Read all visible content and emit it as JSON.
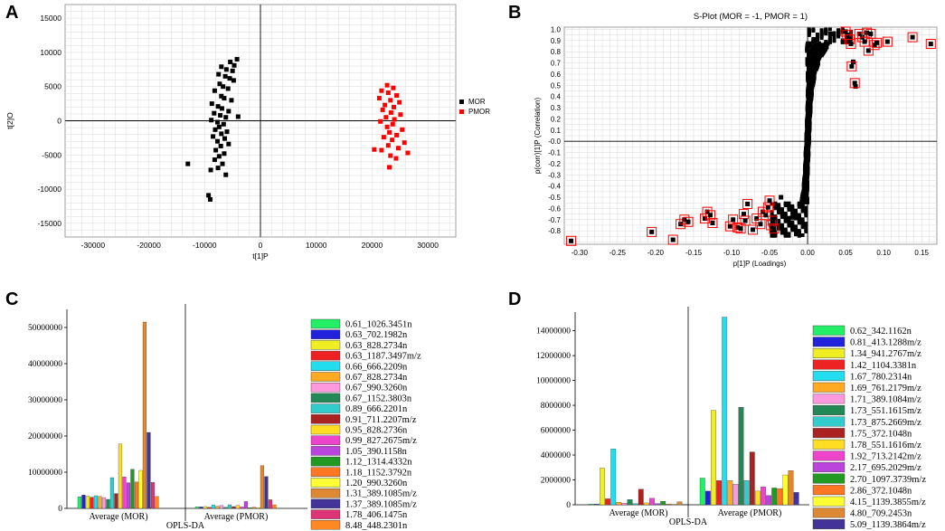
{
  "panels": {
    "a": {
      "letter": "A"
    },
    "b": {
      "letter": "B"
    },
    "c": {
      "letter": "C"
    },
    "d": {
      "letter": "D"
    }
  },
  "colors": {
    "mor": "#000000",
    "pmor": "#ff0000",
    "grid": "#d9d9d9",
    "frame": "#555555"
  },
  "chart_data": [
    {
      "id": "A",
      "type": "scatter",
      "title": "",
      "xlabel": "t[1]P",
      "ylabel": "t[2]O",
      "xlim": [
        -35000,
        35000
      ],
      "ylim": [
        -17000,
        17000
      ],
      "xticks": [
        -30000,
        -20000,
        -10000,
        0,
        10000,
        20000,
        30000
      ],
      "yticks": [
        -15000,
        -10000,
        -5000,
        0,
        5000,
        10000,
        15000
      ],
      "legend_position": "right",
      "series": [
        {
          "name": "MOR",
          "color": "#000000",
          "points": [
            [
              -4200,
              9000
            ],
            [
              -5400,
              8600
            ],
            [
              -4700,
              8100
            ],
            [
              -7000,
              7900
            ],
            [
              -6100,
              7500
            ],
            [
              -5000,
              7300
            ],
            [
              -7500,
              6800
            ],
            [
              -6300,
              6500
            ],
            [
              -5500,
              6200
            ],
            [
              -4800,
              5900
            ],
            [
              -7300,
              5400
            ],
            [
              -6700,
              5000
            ],
            [
              -5800,
              4700
            ],
            [
              -8200,
              4400
            ],
            [
              -7000,
              3600
            ],
            [
              -6500,
              3300
            ],
            [
              -5200,
              3000
            ],
            [
              -8700,
              2500
            ],
            [
              -7600,
              2100
            ],
            [
              -6900,
              1800
            ],
            [
              -5700,
              1400
            ],
            [
              -8300,
              1100
            ],
            [
              -7200,
              800
            ],
            [
              -6200,
              500
            ],
            [
              -8800,
              100
            ],
            [
              -7700,
              -200
            ],
            [
              -6600,
              -500
            ],
            [
              -4000,
              600
            ],
            [
              -7400,
              -900
            ],
            [
              -8100,
              -1300
            ],
            [
              -6000,
              -1600
            ],
            [
              -7000,
              -1900
            ],
            [
              -8500,
              -2300
            ],
            [
              -6400,
              -2600
            ],
            [
              -7700,
              -3000
            ],
            [
              -5700,
              -3400
            ],
            [
              -7100,
              -3700
            ],
            [
              -8000,
              -4300
            ],
            [
              -6500,
              -4800
            ],
            [
              -7400,
              -5200
            ],
            [
              -8200,
              -5700
            ],
            [
              -6800,
              -6300
            ],
            [
              -7600,
              -6900
            ],
            [
              -13000,
              -6300
            ],
            [
              -9300,
              -10900
            ],
            [
              -9000,
              -11500
            ],
            [
              -8900,
              -7200
            ],
            [
              -6200,
              -7900
            ]
          ]
        },
        {
          "name": "PMOR",
          "color": "#ff0000",
          "points": [
            [
              22700,
              5200
            ],
            [
              23800,
              4800
            ],
            [
              21700,
              4400
            ],
            [
              22900,
              4100
            ],
            [
              24400,
              3700
            ],
            [
              21300,
              3300
            ],
            [
              23300,
              3000
            ],
            [
              24900,
              2700
            ],
            [
              22300,
              2300
            ],
            [
              23900,
              2000
            ],
            [
              21900,
              1600
            ],
            [
              23400,
              1200
            ],
            [
              25100,
              900
            ],
            [
              22500,
              500
            ],
            [
              24000,
              200
            ],
            [
              21500,
              -100
            ],
            [
              23700,
              -500
            ],
            [
              22700,
              -900
            ],
            [
              25400,
              -1300
            ],
            [
              23100,
              -1700
            ],
            [
              24400,
              -2100
            ],
            [
              22100,
              -2400
            ],
            [
              23600,
              -2800
            ],
            [
              25800,
              -3200
            ],
            [
              22900,
              -3600
            ],
            [
              24700,
              -4000
            ],
            [
              21700,
              -4300
            ],
            [
              26400,
              -4700
            ],
            [
              23300,
              -5100
            ],
            [
              24300,
              -5500
            ],
            [
              23100,
              -6800
            ],
            [
              20400,
              -4200
            ]
          ]
        }
      ]
    },
    {
      "id": "B",
      "type": "scatter",
      "title": "S-Plot (MOR = -1, PMOR = 1)",
      "xlabel": "p[1]P (Loadings)",
      "ylabel": "p(corr)[1]P (Correlation)",
      "xlim": [
        -0.32,
        0.17
      ],
      "ylim": [
        -0.92,
        1.02
      ],
      "xticks": [
        -0.3,
        -0.25,
        -0.2,
        -0.15,
        -0.1,
        -0.05,
        0.0,
        0.05,
        0.1,
        0.15
      ],
      "xtick_labels": [
        "-0.30",
        "-0.25",
        "-0.20",
        "-0.15",
        "-0.10",
        "-0.05",
        "0.00",
        "0.05",
        "0.10",
        "0.15"
      ],
      "yticks": [
        -0.8,
        -0.7,
        -0.6,
        -0.5,
        -0.4,
        -0.3,
        -0.2,
        -0.1,
        0.0,
        0.1,
        0.2,
        0.3,
        0.4,
        0.5,
        0.6,
        0.7,
        0.8,
        0.9,
        1.0
      ],
      "ytick_labels": [
        "-0.8",
        "-0.7",
        "-0.6",
        "-0.5",
        "-0.4",
        "-0.3",
        "-0.2",
        "-0.1",
        "-0.0",
        "0.1",
        "0.2",
        "0.3",
        "0.4",
        "0.5",
        "0.6",
        "0.7",
        "0.8",
        "0.9",
        "1.0"
      ],
      "selected_points": [
        [
          -0.311,
          -0.89
        ],
        [
          -0.205,
          -0.81
        ],
        [
          -0.177,
          -0.88
        ],
        [
          -0.167,
          -0.74
        ],
        [
          -0.162,
          -0.7
        ],
        [
          -0.157,
          -0.72
        ],
        [
          -0.135,
          -0.69
        ],
        [
          -0.132,
          -0.63
        ],
        [
          -0.128,
          -0.66
        ],
        [
          -0.125,
          -0.73
        ],
        [
          -0.102,
          -0.76
        ],
        [
          -0.098,
          -0.7
        ],
        [
          -0.092,
          -0.77
        ],
        [
          -0.088,
          -0.78
        ],
        [
          -0.084,
          -0.65
        ],
        [
          -0.082,
          -0.71
        ],
        [
          -0.079,
          -0.56
        ],
        [
          -0.072,
          -0.79
        ],
        [
          -0.067,
          -0.69
        ],
        [
          -0.062,
          -0.74
        ],
        [
          -0.059,
          -0.63
        ],
        [
          -0.055,
          -0.66
        ],
        [
          -0.052,
          -0.59
        ],
        [
          -0.05,
          -0.53
        ],
        [
          -0.048,
          -0.75
        ],
        [
          -0.046,
          -0.71
        ],
        [
          -0.044,
          -0.78
        ],
        [
          0.05,
          0.98
        ],
        [
          0.052,
          0.95
        ],
        [
          0.055,
          0.91
        ],
        [
          0.057,
          0.87
        ],
        [
          0.058,
          0.67
        ],
        [
          0.062,
          0.52
        ],
        [
          0.068,
          0.96
        ],
        [
          0.072,
          0.93
        ],
        [
          0.075,
          0.89
        ],
        [
          0.078,
          0.97
        ],
        [
          0.08,
          0.81
        ],
        [
          0.083,
          0.96
        ],
        [
          0.088,
          0.86
        ],
        [
          0.091,
          0.88
        ],
        [
          0.105,
          0.89
        ],
        [
          0.138,
          0.93
        ],
        [
          0.162,
          0.87
        ]
      ],
      "extra_points": [
        [
          0.063,
          0.49
        ],
        [
          0.06,
          0.71
        ],
        [
          0.01,
          0.91
        ],
        [
          0.03,
          0.96
        ],
        [
          -0.02,
          -0.68
        ],
        [
          -0.035,
          -0.5
        ]
      ]
    },
    {
      "id": "C",
      "type": "bar",
      "footer": "OPLS-DA",
      "categories": [
        "Average (MOR)",
        "Average (PMOR)"
      ],
      "ylim": [
        0,
        55000000
      ],
      "yticks": [
        0,
        10000000,
        20000000,
        30000000,
        40000000,
        50000000
      ],
      "ytick_labels": [
        "0",
        "10000000",
        "20000000",
        "30000000",
        "40000000",
        "50000000"
      ],
      "series": [
        {
          "name": "0.61_1026.3451n",
          "color": "#22ee66",
          "values": [
            3200000,
            450000
          ]
        },
        {
          "name": "0.63_702.1982n",
          "color": "#2222dd",
          "values": [
            3700000,
            400000
          ]
        },
        {
          "name": "0.63_828.2734n",
          "color": "#eeee22",
          "values": [
            3400000,
            500000
          ]
        },
        {
          "name": "0.63_1187.3497m/z",
          "color": "#ee2222",
          "values": [
            3100000,
            300000
          ]
        },
        {
          "name": "0.66_666.2209n",
          "color": "#22ddee",
          "values": [
            3500000,
            900000
          ]
        },
        {
          "name": "0.67_828.2734n",
          "color": "#ffaa22",
          "values": [
            3300000,
            600000
          ]
        },
        {
          "name": "0.67_990.3260n",
          "color": "#ff99dd",
          "values": [
            3000000,
            800000
          ]
        },
        {
          "name": "0.67_1152.3803n",
          "color": "#228855",
          "values": [
            2500000,
            300000
          ]
        },
        {
          "name": "0.89_666.2201n",
          "color": "#33cccc",
          "values": [
            8500000,
            1000000
          ]
        },
        {
          "name": "0.91_711.2207m/z",
          "color": "#aa2222",
          "values": [
            4100000,
            500000
          ]
        },
        {
          "name": "0.95_828.2736n",
          "color": "#ffdd22",
          "values": [
            17800000,
            800000
          ]
        },
        {
          "name": "0.99_827.2675m/z",
          "color": "#ee44cc",
          "values": [
            8700000,
            400000
          ]
        },
        {
          "name": "1.05_390.1158n",
          "color": "#bb44dd",
          "values": [
            7100000,
            1900000
          ]
        },
        {
          "name": "1.12_1314.4332n",
          "color": "#229922",
          "values": [
            10800000,
            200000
          ]
        },
        {
          "name": "1.18_1152.3792n",
          "color": "#ff7722",
          "values": [
            7300000,
            300000
          ]
        },
        {
          "name": "1.20_990.3260n",
          "color": "#ffff33",
          "values": [
            10500000,
            200000
          ]
        },
        {
          "name": "1.31_389.1085m/z",
          "color": "#dd8833",
          "values": [
            51500000,
            11800000
          ]
        },
        {
          "name": "1.37_389.1085m/z",
          "color": "#443399",
          "values": [
            21000000,
            8800000
          ]
        },
        {
          "name": "1.78_406.1475n",
          "color": "#dd3377",
          "values": [
            7200000,
            2400000
          ]
        },
        {
          "name": "8.48_448.2301n",
          "color": "#ff8822",
          "values": [
            3300000,
            1000000
          ]
        }
      ]
    },
    {
      "id": "D",
      "type": "bar",
      "footer": "OPLS-DA",
      "categories": [
        "Average (MOR)",
        "Average (PMOR)"
      ],
      "ylim": [
        0,
        15500000
      ],
      "yticks": [
        0,
        2000000,
        4000000,
        6000000,
        8000000,
        10000000,
        12000000,
        14000000
      ],
      "ytick_labels": [
        "0",
        "2000000",
        "4000000",
        "6000000",
        "8000000",
        "10000000",
        "12000000",
        "14000000"
      ],
      "series": [
        {
          "name": "0.62_342.1162n",
          "color": "#22ee66",
          "values": [
            60000,
            2150000
          ]
        },
        {
          "name": "0.81_413.1288m/z",
          "color": "#2222dd",
          "values": [
            50000,
            1100000
          ]
        },
        {
          "name": "1.34_941.2767m/z",
          "color": "#eeee22",
          "values": [
            2950000,
            7600000
          ]
        },
        {
          "name": "1.42_1104.3381n",
          "color": "#ee2222",
          "values": [
            480000,
            1950000
          ]
        },
        {
          "name": "1.67_780.2314n",
          "color": "#22ddee",
          "values": [
            4500000,
            15100000
          ]
        },
        {
          "name": "1.69_761.2179m/z",
          "color": "#ffaa22",
          "values": [
            200000,
            1950000
          ]
        },
        {
          "name": "1.71_389.1084m/z",
          "color": "#ff99dd",
          "values": [
            130000,
            1650000
          ]
        },
        {
          "name": "1.73_551.1615m/z",
          "color": "#228855",
          "values": [
            420000,
            7850000
          ]
        },
        {
          "name": "1.73_875.2669m/z",
          "color": "#33cccc",
          "values": [
            90000,
            1950000
          ]
        },
        {
          "name": "1.75_372.1048n",
          "color": "#aa2222",
          "values": [
            1250000,
            4250000
          ]
        },
        {
          "name": "1.78_551.1616m/z",
          "color": "#ffdd22",
          "values": [
            150000,
            1100000
          ]
        },
        {
          "name": "1.92_713.2142m/z",
          "color": "#ee44cc",
          "values": [
            520000,
            1450000
          ]
        },
        {
          "name": "2.17_695.2029m/z",
          "color": "#bb44dd",
          "values": [
            90000,
            750000
          ]
        },
        {
          "name": "2.70_1097.3739m/z",
          "color": "#229922",
          "values": [
            280000,
            1350000
          ]
        },
        {
          "name": "2.86_372.1048n",
          "color": "#ff7722",
          "values": [
            60000,
            1300000
          ]
        },
        {
          "name": "4.15_1139.3855m/z",
          "color": "#ffff33",
          "values": [
            40000,
            2400000
          ]
        },
        {
          "name": "4.80_709.2453n",
          "color": "#dd8833",
          "values": [
            240000,
            2750000
          ]
        },
        {
          "name": "5.09_1139.3864m/z",
          "color": "#443399",
          "values": [
            30000,
            1000000
          ]
        }
      ]
    }
  ]
}
